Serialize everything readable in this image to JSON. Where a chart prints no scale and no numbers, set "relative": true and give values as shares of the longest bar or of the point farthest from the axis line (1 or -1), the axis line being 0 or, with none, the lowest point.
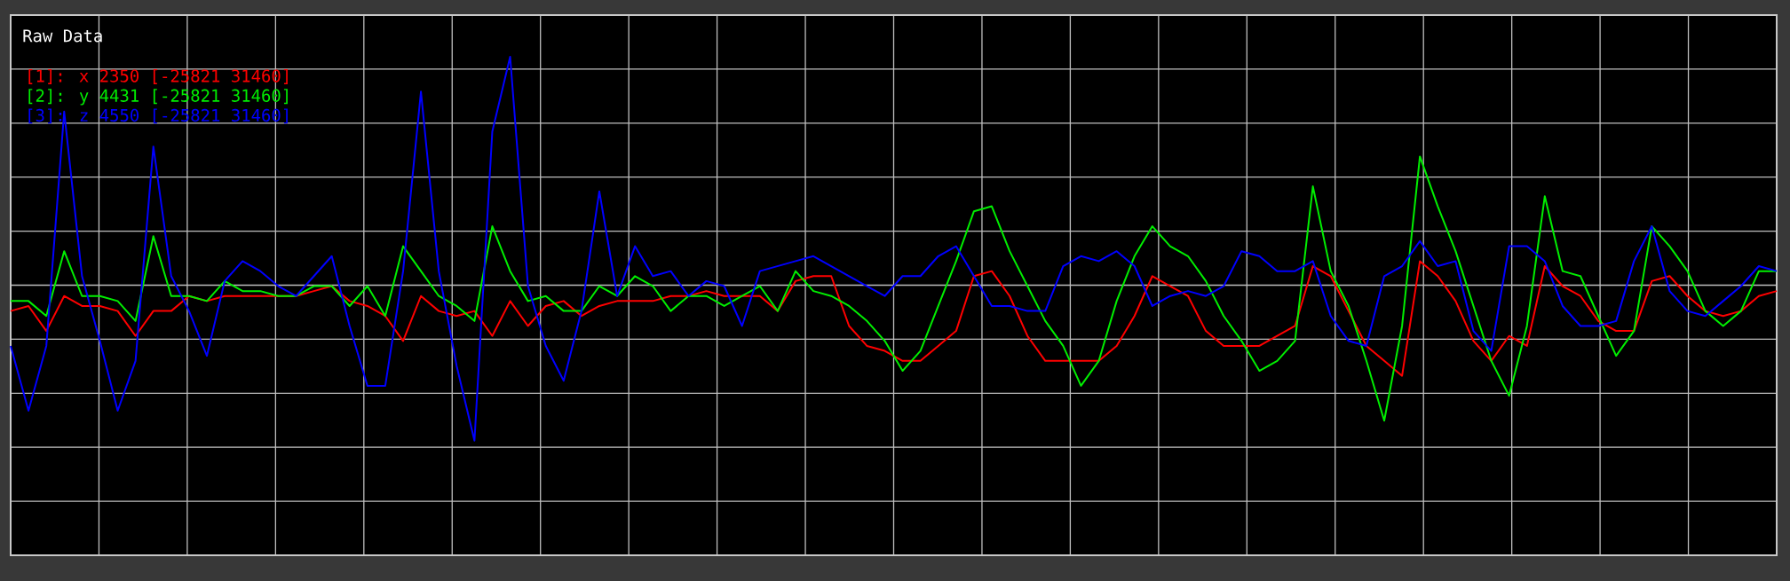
{
  "chart_data": {
    "type": "line",
    "title": "Raw Data",
    "relative": true,
    "grid": true,
    "legend": "top left",
    "categories": [
      null,
      null,
      null,
      null,
      null,
      null,
      null,
      null,
      null,
      null,
      null,
      null,
      null,
      null,
      null,
      null,
      null,
      null,
      null,
      null,
      null,
      null,
      null,
      null,
      null,
      null,
      null,
      null,
      null,
      null,
      null,
      null,
      null,
      null,
      null,
      null,
      null,
      null,
      null,
      null,
      null,
      null,
      null,
      null,
      null,
      null,
      null,
      null,
      null,
      null,
      null,
      null,
      null,
      null,
      null,
      null,
      null,
      null,
      null,
      null,
      null,
      null,
      null,
      null,
      null,
      null,
      null,
      null,
      null,
      null,
      null,
      null,
      null,
      null,
      null,
      null,
      null,
      null,
      null,
      null,
      null,
      null,
      null,
      null,
      null,
      null,
      null,
      null,
      null,
      null,
      null,
      null,
      null,
      null,
      null,
      null,
      null,
      null,
      null,
      null
    ],
    "series": [
      {
        "name": "[1]: x 2350 [-25821 31460]",
        "color": "#ff0000",
        "values": [
          0.49,
          0.5,
          0.45,
          0.52,
          0.5,
          0.5,
          0.49,
          0.44,
          0.49,
          0.49,
          0.52,
          0.51,
          0.52,
          0.52,
          0.52,
          0.52,
          0.52,
          0.53,
          0.54,
          0.51,
          0.5,
          0.48,
          0.43,
          0.52,
          0.49,
          0.48,
          0.49,
          0.44,
          0.51,
          0.46,
          0.5,
          0.51,
          0.48,
          0.5,
          0.51,
          0.51,
          0.51,
          0.52,
          0.52,
          0.53,
          0.52,
          0.52,
          0.52,
          0.49,
          0.55,
          0.56,
          0.56,
          0.46,
          0.42,
          0.41,
          0.39,
          0.39,
          0.42,
          0.45,
          0.56,
          0.57,
          0.52,
          0.44,
          0.39,
          0.39,
          0.39,
          0.39,
          0.42,
          0.48,
          0.56,
          0.54,
          0.52,
          0.45,
          0.42,
          0.42,
          0.42,
          0.44,
          0.46,
          0.58,
          0.56,
          0.49,
          0.42,
          0.39,
          0.36,
          0.59,
          0.56,
          0.51,
          0.43,
          0.39,
          0.44,
          0.42,
          0.58,
          0.54,
          0.52,
          0.47,
          0.45,
          0.45,
          0.55,
          0.56,
          0.52,
          0.49,
          0.48,
          0.49,
          0.52,
          0.53
        ]
      },
      {
        "name": "[2]: y 4431 [-25821 31460]",
        "color": "#00ee00",
        "values": [
          0.51,
          0.51,
          0.48,
          0.61,
          0.52,
          0.52,
          0.51,
          0.47,
          0.64,
          0.52,
          0.52,
          0.51,
          0.55,
          0.53,
          0.53,
          0.52,
          0.52,
          0.54,
          0.54,
          0.5,
          0.54,
          0.48,
          0.62,
          0.57,
          0.52,
          0.5,
          0.47,
          0.66,
          0.57,
          0.51,
          0.52,
          0.49,
          0.49,
          0.54,
          0.52,
          0.56,
          0.54,
          0.49,
          0.52,
          0.52,
          0.5,
          0.52,
          0.54,
          0.49,
          0.57,
          0.53,
          0.52,
          0.5,
          0.47,
          0.43,
          0.37,
          0.41,
          0.5,
          0.59,
          0.69,
          0.7,
          0.61,
          0.54,
          0.47,
          0.42,
          0.34,
          0.39,
          0.51,
          0.6,
          0.66,
          0.62,
          0.6,
          0.55,
          0.48,
          0.43,
          0.37,
          0.39,
          0.43,
          0.74,
          0.57,
          0.5,
          0.39,
          0.27,
          0.46,
          0.8,
          0.7,
          0.61,
          0.5,
          0.39,
          0.32,
          0.46,
          0.72,
          0.57,
          0.56,
          0.48,
          0.4,
          0.45,
          0.66,
          0.62,
          0.57,
          0.49,
          0.46,
          0.49,
          0.57,
          0.57
        ]
      },
      {
        "name": "[3]: z 4550 [-25821 31460]",
        "color": "#0000ff",
        "values": [
          0.42,
          0.29,
          0.42,
          0.89,
          0.56,
          0.43,
          0.29,
          0.39,
          0.82,
          0.56,
          0.49,
          0.4,
          0.55,
          0.59,
          0.57,
          0.54,
          0.52,
          0.56,
          0.6,
          0.46,
          0.34,
          0.34,
          0.57,
          0.93,
          0.57,
          0.38,
          0.23,
          0.85,
          1,
          0.54,
          0.42,
          0.35,
          0.49,
          0.73,
          0.52,
          0.62,
          0.56,
          0.57,
          0.52,
          0.55,
          0.54,
          0.46,
          0.57,
          0.58,
          0.59,
          0.6,
          0.58,
          0.56,
          0.54,
          0.52,
          0.56,
          0.56,
          0.6,
          0.62,
          0.56,
          0.5,
          0.5,
          0.49,
          0.49,
          0.58,
          0.6,
          0.59,
          0.61,
          0.58,
          0.5,
          0.52,
          0.53,
          0.52,
          0.54,
          0.61,
          0.6,
          0.57,
          0.57,
          0.59,
          0.48,
          0.43,
          0.42,
          0.56,
          0.58,
          0.63,
          0.58,
          0.59,
          0.45,
          0.41,
          0.62,
          0.62,
          0.59,
          0.5,
          0.46,
          0.46,
          0.47,
          0.59,
          0.66,
          0.53,
          0.49,
          0.48,
          0.51,
          0.54,
          0.58,
          0.57
        ]
      }
    ]
  }
}
